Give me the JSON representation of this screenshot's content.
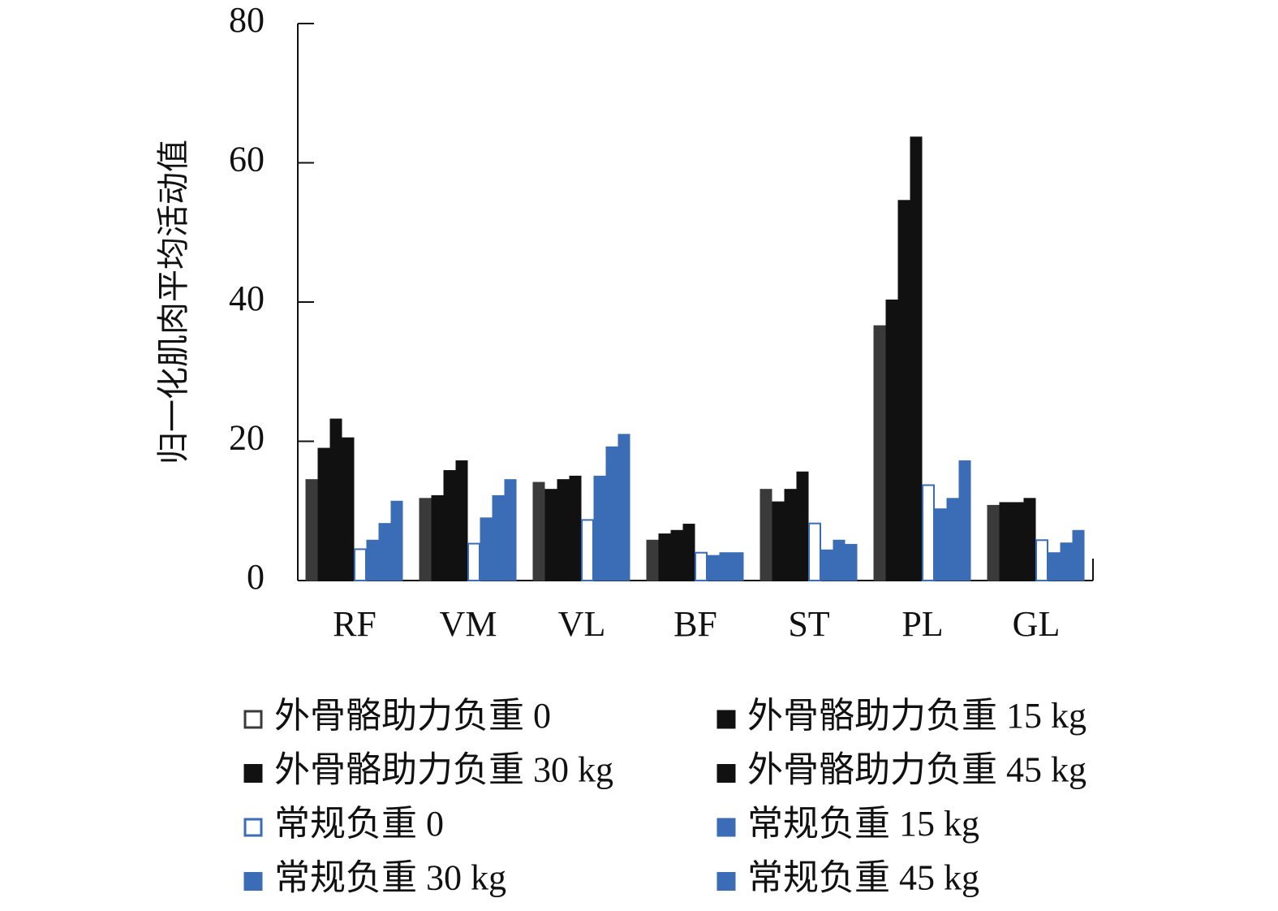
{
  "chart_data": {
    "type": "bar",
    "y_label": "归一化肌肉平均活动值",
    "categories": [
      "RF",
      "VM",
      "VL",
      "BF",
      "ST",
      "PL",
      "GL"
    ],
    "series": [
      {
        "name": "外骨骼助力负重 0",
        "color": "#3a3a3a",
        "values": [
          14.5,
          11.8,
          14.1,
          5.8,
          13.1,
          36.6,
          10.8
        ]
      },
      {
        "name": "外骨骼助力负重 15 kg",
        "color": "#111111",
        "values": [
          19,
          12.2,
          13.1,
          6.7,
          11.3,
          40.3,
          11.2
        ]
      },
      {
        "name": "外骨骼助力负重 30 kg",
        "color": "#111111",
        "values": [
          23.2,
          15.8,
          14.5,
          7.2,
          13.1,
          54.6,
          11.2
        ]
      },
      {
        "name": "外骨骼助力负重 45 kg",
        "color": "#111111",
        "values": [
          20.5,
          17.2,
          15,
          8.1,
          15.6,
          63.7,
          11.8
        ]
      },
      {
        "name": "常规负重 0",
        "color": "#3a6db5",
        "style": "outline",
        "values": [
          4.5,
          5.3,
          8.7,
          4,
          8.2,
          13.7,
          5.8
        ]
      },
      {
        "name": "常规负重 15 kg",
        "color": "#3a6db5",
        "values": [
          5.8,
          9,
          15,
          3.6,
          4.4,
          10.3,
          4
        ]
      },
      {
        "name": "常规负重 30 kg",
        "color": "#3a6db5",
        "values": [
          8.2,
          12.2,
          19.2,
          4,
          5.8,
          11.8,
          5.4
        ]
      },
      {
        "name": "常规负重 45 kg",
        "color": "#3a6db5",
        "values": [
          11.4,
          14.5,
          21,
          4,
          5.2,
          17.2,
          7.2
        ]
      }
    ],
    "ylim": [
      0,
      80
    ],
    "yticks": [
      0,
      20,
      40,
      60,
      80
    ]
  }
}
